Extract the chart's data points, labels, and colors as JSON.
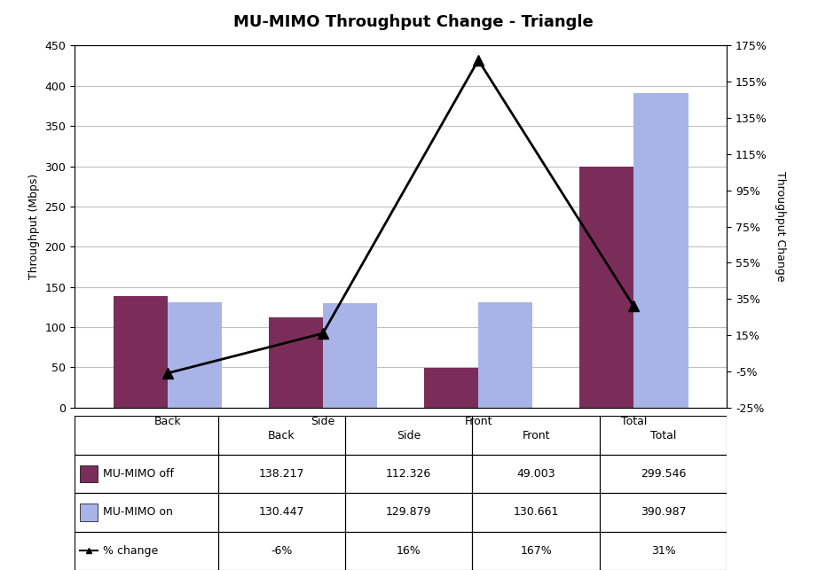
{
  "title": "MU-MIMO Throughput Change - Triangle",
  "categories": [
    "Back",
    "Side",
    "Front",
    "Total"
  ],
  "mimo_off": [
    138.217,
    112.326,
    49.003,
    299.546
  ],
  "mimo_on": [
    130.447,
    129.879,
    130.661,
    390.987
  ],
  "pct_change": [
    -0.06,
    0.16,
    1.67,
    0.31
  ],
  "bar_color_off": "#7B2D5A",
  "bar_color_on": "#A8B4E8",
  "line_color": "#000000",
  "ylabel_left": "Throughput (Mbps)",
  "ylabel_right": "Throughput Change",
  "ylim_left": [
    0,
    450
  ],
  "ylim_right": [
    -0.25,
    1.75
  ],
  "yticks_left": [
    0,
    50,
    100,
    150,
    200,
    250,
    300,
    350,
    400,
    450
  ],
  "yticks_right": [
    -0.25,
    -0.05,
    0.15,
    0.35,
    0.55,
    0.75,
    0.95,
    1.15,
    1.35,
    1.55,
    1.75
  ],
  "ytick_labels_right": [
    "-25%",
    "-5%",
    "15%",
    "35%",
    "55%",
    "75%",
    "95%",
    "115%",
    "135%",
    "155%",
    "175%"
  ],
  "table_row_labels": [
    "MU-MIMO off",
    "MU-MIMO on",
    "% change"
  ],
  "table_off_values": [
    "138.217",
    "112.326",
    "49.003",
    "299.546"
  ],
  "table_on_values": [
    "130.447",
    "129.879",
    "130.661",
    "390.987"
  ],
  "table_pct_values": [
    "-6%",
    "16%",
    "167%",
    "31%"
  ],
  "bar_width": 0.35,
  "title_fontsize": 13,
  "axis_fontsize": 9,
  "tick_fontsize": 9,
  "table_fontsize": 9,
  "background_color": "#FFFFFF",
  "grid_color": "#C0C0C0"
}
